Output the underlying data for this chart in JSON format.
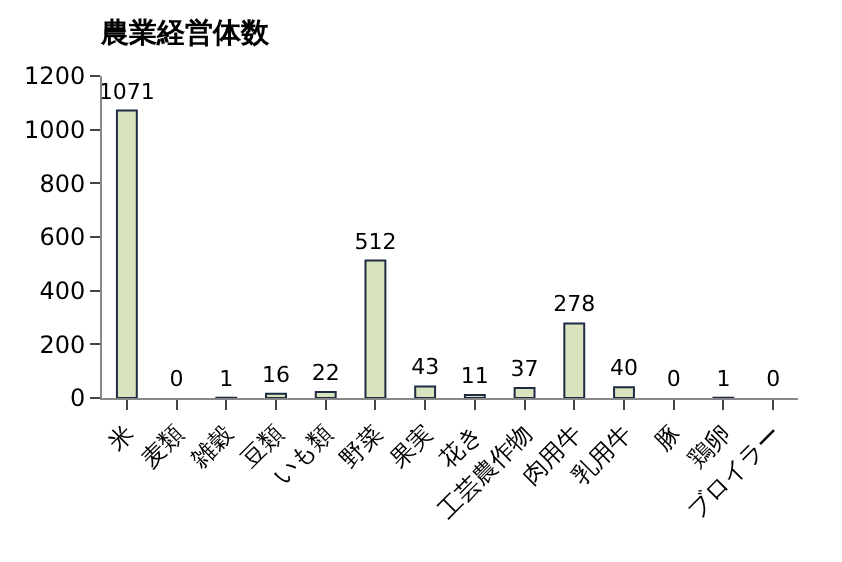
{
  "chart_data": {
    "type": "bar",
    "title": "農業経営体数",
    "categories": [
      "米",
      "麦類",
      "雑穀",
      "豆類",
      "いも類",
      "野菜",
      "果実",
      "花き",
      "工芸農作物",
      "肉用牛",
      "乳用牛",
      "豚",
      "鶏卵",
      "ブロイラー"
    ],
    "values": [
      1071,
      0,
      1,
      16,
      22,
      512,
      43,
      11,
      37,
      278,
      40,
      0,
      1,
      0
    ],
    "color": "#d7e4bd",
    "ylim": [
      0,
      1200
    ],
    "yticks": [
      0,
      200,
      400,
      600,
      800,
      1000,
      1200
    ],
    "data_labels": true
  }
}
